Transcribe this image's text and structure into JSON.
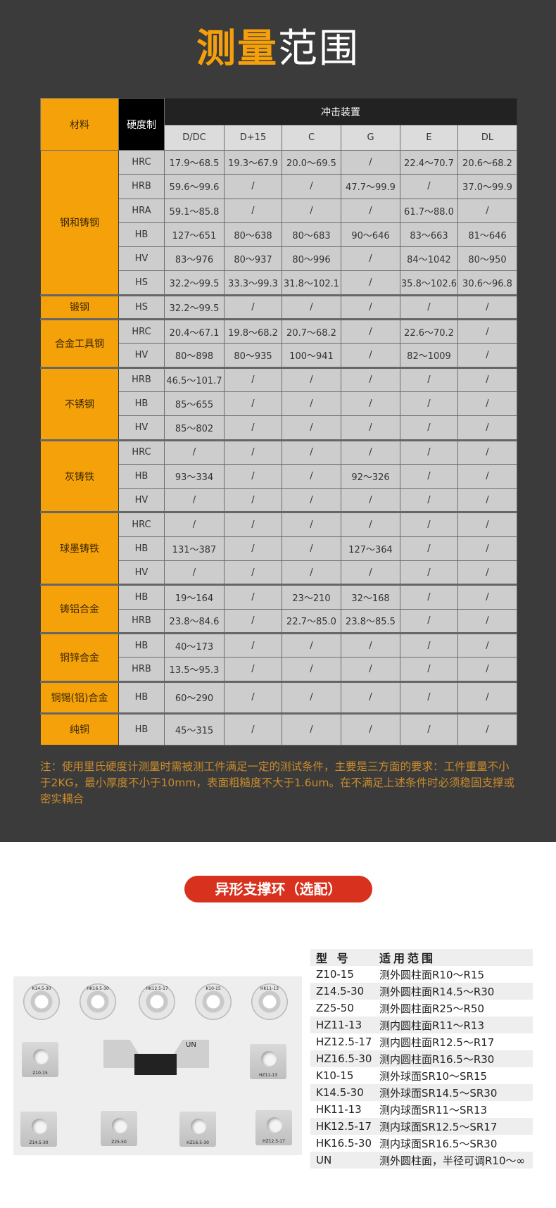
{
  "title": {
    "part1": "测量",
    "part2": "范围"
  },
  "table": {
    "header_material": "材料",
    "header_hardness": "硬度制",
    "header_impact": "冲击装置",
    "devices": [
      "D/DC",
      "D+15",
      "C",
      "G",
      "E",
      "DL"
    ],
    "groups": [
      {
        "material": "钢和铸钢",
        "rows": [
          {
            "scale": "HRC",
            "values": [
              "17.9～68.5",
              "19.3～67.9",
              "20.0～69.5",
              "/",
              "22.4～70.7",
              "20.6～68.2"
            ]
          },
          {
            "scale": "HRB",
            "values": [
              "59.6～99.6",
              "/",
              "/",
              "47.7～99.9",
              "/",
              "37.0～99.9"
            ]
          },
          {
            "scale": "HRA",
            "values": [
              "59.1～85.8",
              "/",
              "/",
              "/",
              "61.7～88.0",
              "/"
            ]
          },
          {
            "scale": "HB",
            "values": [
              "127～651",
              "80～638",
              "80～683",
              "90～646",
              "83～663",
              "81～646"
            ]
          },
          {
            "scale": "HV",
            "values": [
              "83～976",
              "80～937",
              "80～996",
              "/",
              "84～1042",
              "80～950"
            ]
          },
          {
            "scale": "HS",
            "values": [
              "32.2～99.5",
              "33.3～99.3",
              "31.8～102.1",
              "/",
              "35.8～102.6",
              "30.6～96.8"
            ]
          }
        ]
      },
      {
        "material": "锻钢",
        "rows": [
          {
            "scale": "HS",
            "values": [
              "32.2～99.5",
              "/",
              "/",
              "/",
              "/",
              "/"
            ]
          }
        ]
      },
      {
        "material": "合金工具钢",
        "rows": [
          {
            "scale": "HRC",
            "values": [
              "20.4～67.1",
              "19.8～68.2",
              "20.7～68.2",
              "/",
              "22.6～70.2",
              "/"
            ]
          },
          {
            "scale": "HV",
            "values": [
              "80～898",
              "80～935",
              "100～941",
              "/",
              "82～1009",
              "/"
            ]
          }
        ]
      },
      {
        "material": "不锈钢",
        "rows": [
          {
            "scale": "HRB",
            "values": [
              "46.5～101.7",
              "/",
              "/",
              "/",
              "/",
              "/"
            ]
          },
          {
            "scale": "HB",
            "values": [
              "85～655",
              "/",
              "/",
              "/",
              "/",
              "/"
            ]
          },
          {
            "scale": "HV",
            "values": [
              "85～802",
              "/",
              "/",
              "/",
              "/",
              "/"
            ]
          }
        ]
      },
      {
        "material": "灰铸铁",
        "rows": [
          {
            "scale": "HRC",
            "values": [
              "/",
              "/",
              "/",
              "/",
              "/",
              "/"
            ]
          },
          {
            "scale": "HB",
            "values": [
              "93～334",
              "/",
              "/",
              "92～326",
              "/",
              "/"
            ]
          },
          {
            "scale": "HV",
            "values": [
              "/",
              "/",
              "/",
              "/",
              "/",
              "/"
            ]
          }
        ]
      },
      {
        "material": "球墨铸铁",
        "rows": [
          {
            "scale": "HRC",
            "values": [
              "/",
              "/",
              "/",
              "/",
              "/",
              "/"
            ]
          },
          {
            "scale": "HB",
            "values": [
              "131～387",
              "/",
              "/",
              "127～364",
              "/",
              "/"
            ]
          },
          {
            "scale": "HV",
            "values": [
              "/",
              "/",
              "/",
              "/",
              "/",
              "/"
            ]
          }
        ]
      },
      {
        "material": "铸铝合金",
        "rows": [
          {
            "scale": "HB",
            "values": [
              "19～164",
              "/",
              "23～210",
              "32～168",
              "/",
              "/"
            ]
          },
          {
            "scale": "HRB",
            "values": [
              "23.8～84.6",
              "/",
              "22.7～85.0",
              "23.8～85.5",
              "/",
              "/"
            ]
          }
        ]
      },
      {
        "material": "铜锌合金",
        "rows": [
          {
            "scale": "HB",
            "values": [
              "40～173",
              "/",
              "/",
              "/",
              "/",
              "/"
            ]
          },
          {
            "scale": "HRB",
            "values": [
              "13.5～95.3",
              "/",
              "/",
              "/",
              "/",
              "/"
            ]
          }
        ]
      },
      {
        "material": "铜锡(铝)合金",
        "tall": true,
        "rows": [
          {
            "scale": "HB",
            "values": [
              "60～290",
              "/",
              "/",
              "/",
              "/",
              "/"
            ]
          }
        ]
      },
      {
        "material": "纯铜",
        "tall": true,
        "rows": [
          {
            "scale": "HB",
            "values": [
              "45～315",
              "/",
              "/",
              "/",
              "/",
              "/"
            ]
          }
        ]
      }
    ]
  },
  "note": "注：使用里氏硬度计测量时需被测工件满足一定的测试条件，主要是三方面的要求：工件重量不小于2KG，最小厚度不小于10mm，表面粗糙度不大于1.6um。在不满足上述条件时必须稳固支撑或密实耦合",
  "section2_title": "异形支撑环（选配）",
  "photo_labels": {
    "rings": [
      "K14.5-30",
      "HK16.5-30",
      "HK12.5-17",
      "K10-15",
      "HK11-13"
    ],
    "blocks_mid": [
      "Z10-15",
      "HZ11-13"
    ],
    "blocks_bottom": [
      "Z14.5-30",
      "Z25-50",
      "HZ16.5-30",
      "HZ12.5-17"
    ],
    "holder": "UN"
  },
  "rings_table": {
    "header": [
      "型 号",
      "适用范围"
    ],
    "rows": [
      [
        "Z10-15",
        "测外圆柱面R10～R15"
      ],
      [
        "Z14.5-30",
        "测外圆柱面R14.5～R30"
      ],
      [
        "Z25-50",
        "测外圆柱面R25～R50"
      ],
      [
        "HZ11-13",
        "测内圆柱面R11～R13"
      ],
      [
        "HZ12.5-17",
        "测内圆柱面R12.5～R17"
      ],
      [
        "HZ16.5-30",
        "测内圆柱面R16.5～R30"
      ],
      [
        "K10-15",
        "测外球面SR10～SR15"
      ],
      [
        "K14.5-30",
        "测外球面SR14.5～SR30"
      ],
      [
        "HK11-13",
        "测内球面SR11～SR13"
      ],
      [
        "HK12.5-17",
        "测内球面SR12.5～SR17"
      ],
      [
        "HK16.5-30",
        "测内球面SR16.5～SR30"
      ],
      [
        "UN",
        "测外圆柱面，半径可调R10～∞"
      ]
    ]
  },
  "colors": {
    "accent": "#f5a20a",
    "dark_bg": "#3b3b3b",
    "note": "#c98b2c",
    "pill": "#d8321e"
  }
}
